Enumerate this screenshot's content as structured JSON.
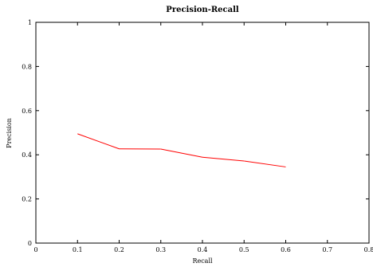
{
  "chart_data": {
    "type": "line",
    "title": "Precision-Recall",
    "xlabel": "Recall",
    "ylabel": "Precision",
    "xlim": [
      0,
      0.8
    ],
    "ylim": [
      0,
      1
    ],
    "x_ticks": [
      "0",
      "0.1",
      "0.2",
      "0.3",
      "0.4",
      "0.5",
      "0.6",
      "0.7",
      "0.8"
    ],
    "y_ticks": [
      "0",
      "0.2",
      "0.4",
      "0.6",
      "0.8",
      "1"
    ],
    "grid": false,
    "series": [
      {
        "color": "#ff0000",
        "x": [
          0.1,
          0.2,
          0.3,
          0.4,
          0.5,
          0.6
        ],
        "y": [
          0.495,
          0.427,
          0.426,
          0.389,
          0.372,
          0.345
        ]
      }
    ]
  }
}
